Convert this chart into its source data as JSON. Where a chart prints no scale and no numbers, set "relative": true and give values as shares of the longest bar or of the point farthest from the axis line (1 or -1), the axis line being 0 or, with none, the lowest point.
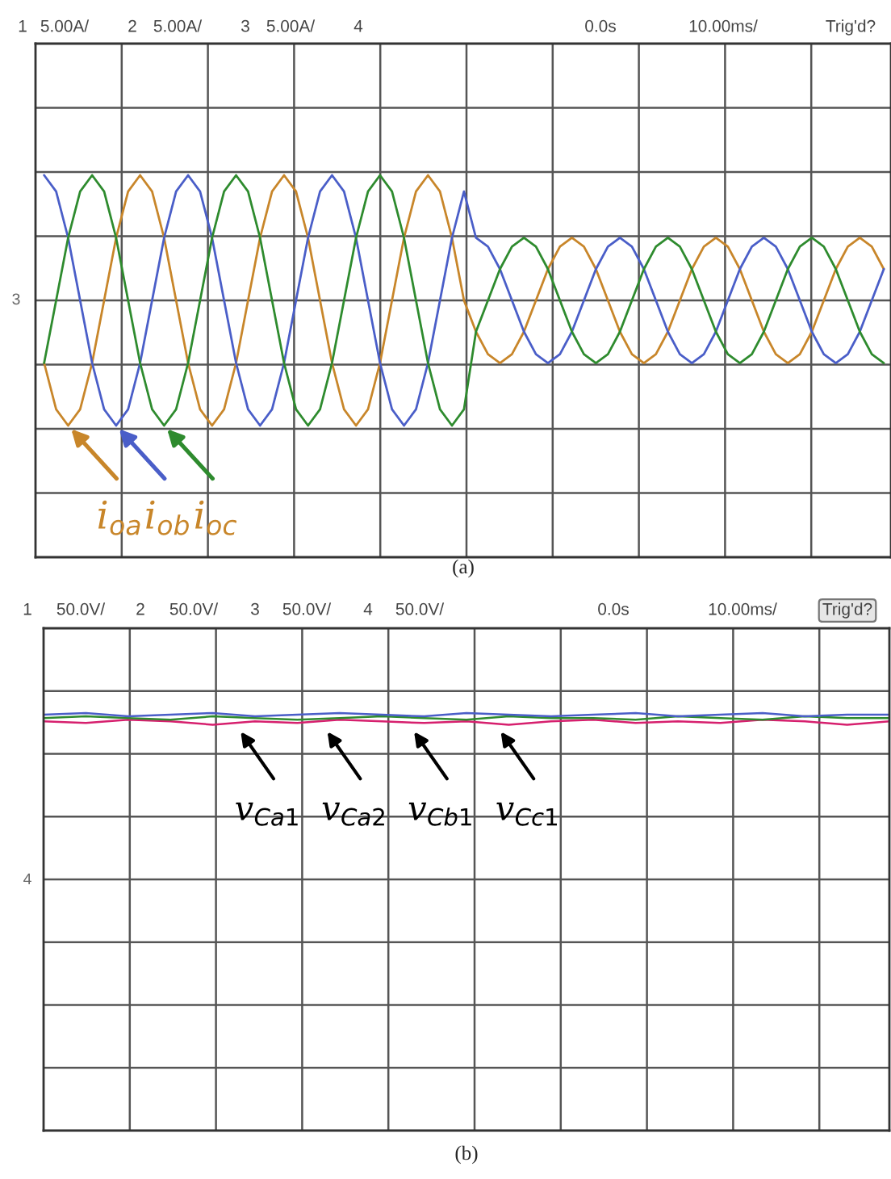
{
  "chart_data": [
    {
      "type": "line",
      "title": "(a)",
      "relative": true,
      "grid": true,
      "tick_labels": false,
      "legend": "bottom left",
      "categories": [
        null,
        null,
        null,
        null,
        null,
        null,
        null,
        null,
        null,
        null,
        null,
        null,
        null,
        null,
        null,
        null,
        null,
        null,
        null,
        null,
        null,
        null,
        null,
        null,
        null,
        null,
        null,
        null,
        null,
        null,
        null,
        null,
        null,
        null,
        null,
        null,
        null,
        null,
        null,
        null,
        null,
        null,
        null,
        null,
        null,
        null,
        null,
        null,
        null,
        null,
        null,
        null,
        null,
        null,
        null,
        null,
        null,
        null,
        null,
        null,
        null,
        null,
        null,
        null,
        null,
        null,
        null,
        null,
        null,
        null,
        null
      ],
      "series": [
        {
          "name": "i$_{oa}$",
          "color": "#c8862a",
          "values": [
            -0.5,
            -0.87,
            -1,
            -0.87,
            -0.5,
            0,
            0.5,
            0.87,
            1,
            0.87,
            0.5,
            0,
            -0.5,
            -0.87,
            -1,
            -0.87,
            -0.5,
            0,
            0.5,
            0.87,
            1,
            0.87,
            0.5,
            0,
            -0.5,
            -0.87,
            -1,
            -0.87,
            -0.5,
            0,
            0.5,
            0.87,
            1,
            0.87,
            0.5,
            0,
            -0.25,
            -0.43,
            -0.5,
            -0.43,
            -0.25,
            0,
            0.25,
            0.43,
            0.5,
            0.43,
            0.25,
            0,
            -0.25,
            -0.43,
            -0.5,
            -0.43,
            -0.25,
            0,
            0.25,
            0.43,
            0.5,
            0.43,
            0.25,
            0,
            -0.25,
            -0.43,
            -0.5,
            -0.43,
            -0.25,
            0,
            0.25,
            0.43,
            0.5,
            0.43,
            0.25
          ]
        },
        {
          "name": "i$_{ob}$",
          "color": "#4a5ec8",
          "values": [
            1,
            0.87,
            0.5,
            0,
            -0.5,
            -0.87,
            -1,
            -0.87,
            -0.5,
            0,
            0.5,
            0.87,
            1,
            0.87,
            0.5,
            0,
            -0.5,
            -0.87,
            -1,
            -0.87,
            -0.5,
            0,
            0.5,
            0.87,
            1,
            0.87,
            0.5,
            0,
            -0.5,
            -0.87,
            -1,
            -0.87,
            -0.5,
            0,
            0.5,
            0.87,
            0.5,
            0.43,
            0.25,
            0,
            -0.25,
            -0.43,
            -0.5,
            -0.43,
            -0.25,
            0,
            0.25,
            0.43,
            0.5,
            0.43,
            0.25,
            0,
            -0.25,
            -0.43,
            -0.5,
            -0.43,
            -0.25,
            0,
            0.25,
            0.43,
            0.5,
            0.43,
            0.25,
            0,
            -0.25,
            -0.43,
            -0.5,
            -0.43,
            -0.25,
            0,
            0.25
          ]
        },
        {
          "name": "i$_{oc}$",
          "color": "#2e8b2e",
          "values": [
            -0.5,
            0,
            0.5,
            0.87,
            1,
            0.87,
            0.5,
            0,
            -0.5,
            -0.87,
            -1,
            -0.87,
            -0.5,
            0,
            0.5,
            0.87,
            1,
            0.87,
            0.5,
            0,
            -0.5,
            -0.87,
            -1,
            -0.87,
            -0.5,
            0,
            0.5,
            0.87,
            1,
            0.87,
            0.5,
            0,
            -0.5,
            -0.87,
            -1,
            -0.87,
            -0.25,
            0,
            0.25,
            0.43,
            0.5,
            0.43,
            0.25,
            0,
            -0.25,
            -0.43,
            -0.5,
            -0.43,
            -0.25,
            0,
            0.25,
            0.43,
            0.5,
            0.43,
            0.25,
            0,
            -0.25,
            -0.43,
            -0.5,
            -0.43,
            -0.25,
            0,
            0.25,
            0.43,
            0.5,
            0.43,
            0.25,
            0,
            -0.25,
            -0.43,
            -0.5
          ]
        }
      ],
      "annotations": [
        "1",
        "5.00A/",
        "2",
        "5.00A/",
        "3",
        "5.00A/",
        "4",
        "0.0s",
        "10.00ms/",
        "Trig'd?",
        "3"
      ]
    },
    {
      "type": "line",
      "title": "(b)",
      "relative": true,
      "grid": true,
      "tick_labels": false,
      "categories": [
        null,
        null,
        null,
        null,
        null,
        null,
        null,
        null,
        null,
        null,
        null,
        null,
        null,
        null,
        null,
        null,
        null,
        null,
        null,
        null,
        null
      ],
      "series": [
        {
          "color": "#d6206e",
          "values": [
            0.95,
            0.94,
            0.96,
            0.95,
            0.93,
            0.95,
            0.94,
            0.96,
            0.95,
            0.94,
            0.95,
            0.93,
            0.95,
            0.96,
            0.94,
            0.95,
            0.94,
            0.96,
            0.95,
            0.93,
            0.95
          ]
        },
        {
          "color": "#2e8b2e",
          "values": [
            0.97,
            0.98,
            0.97,
            0.96,
            0.98,
            0.97,
            0.96,
            0.97,
            0.98,
            0.97,
            0.96,
            0.98,
            0.97,
            0.97,
            0.96,
            0.98,
            0.97,
            0.96,
            0.98,
            0.97,
            0.97
          ]
        },
        {
          "color": "#4a5ec8",
          "values": [
            0.99,
            1,
            0.98,
            0.99,
            1,
            0.98,
            0.99,
            1,
            0.99,
            0.98,
            1,
            0.99,
            0.98,
            0.99,
            1,
            0.98,
            0.99,
            1,
            0.98,
            0.99,
            0.99
          ]
        }
      ],
      "annotations": [
        "1",
        "50.0V/",
        "2",
        "50.0V/",
        "3",
        "50.0V/",
        "4",
        "50.0V/",
        "0.0s",
        "10.00ms/",
        "Trig'd?",
        "4",
        "v$_{Ca1}$",
        "v$_{Ca2}$",
        "v$_{Cb1}$",
        "v$_{Cc1}$"
      ]
    }
  ]
}
